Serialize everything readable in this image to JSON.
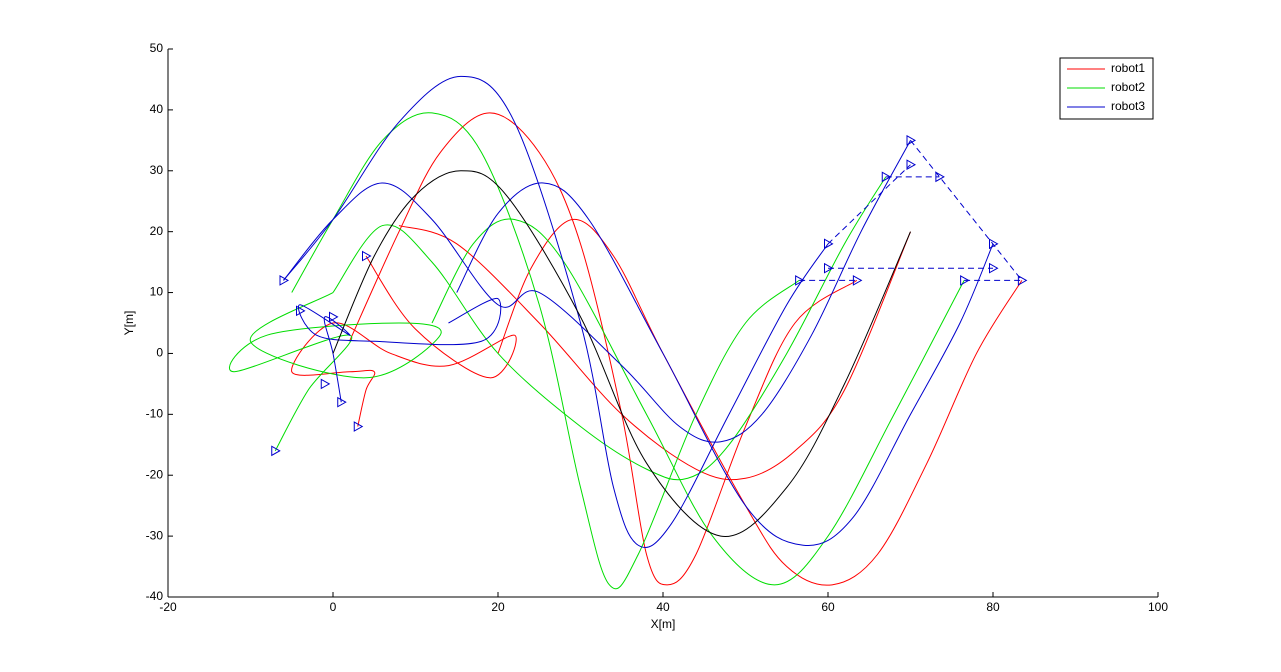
{
  "chart_data": {
    "type": "line",
    "xlabel": "X[m]",
    "ylabel": "Y[m]",
    "xlim": [
      -20,
      100
    ],
    "ylim": [
      -40,
      50
    ],
    "xticks": [
      -20,
      0,
      20,
      40,
      60,
      80,
      100
    ],
    "yticks": [
      -40,
      -30,
      -20,
      -10,
      0,
      10,
      20,
      30,
      40,
      50
    ],
    "legend": "upper right",
    "series": [
      {
        "name": "robot1",
        "color": "#ff0000",
        "x": [
          2,
          8,
          13,
          19,
          25,
          30,
          35,
          38,
          40.5,
          44,
          50,
          56,
          63.5
        ],
        "values": [
          2,
          20,
          33,
          39.5,
          33,
          18,
          -10,
          -33,
          -38,
          -33,
          -12,
          5,
          12
        ]
      },
      {
        "color": "#ff0000",
        "x": [
          20,
          24,
          29,
          34,
          40,
          50,
          55,
          60.5,
          66,
          72,
          78,
          83.5
        ],
        "values": [
          0,
          14,
          22,
          16,
          0,
          -25,
          -35,
          -38,
          -33,
          -18,
          0,
          12
        ]
      },
      {
        "color": "#ff0000",
        "x": [
          8,
          15,
          25,
          35,
          44,
          50,
          56,
          62,
          70
        ],
        "values": [
          21,
          18,
          5,
          -10,
          -19,
          -20.5,
          -16,
          -6,
          20
        ]
      },
      {
        "color": "#ff0000",
        "x": [
          3,
          4,
          5,
          2,
          -5,
          0,
          7,
          14,
          22,
          19,
          10,
          4
        ],
        "values": [
          -12,
          -6,
          -3,
          -3,
          -3,
          5,
          0,
          -2,
          3,
          -4,
          4,
          16
        ]
      },
      {
        "name": "robot2",
        "color": "#00dd00",
        "x": [
          -5,
          0,
          6,
          12,
          18,
          25,
          30,
          33.5,
          37,
          44,
          50,
          56.5
        ],
        "values": [
          10,
          22,
          35,
          39.5,
          33,
          8,
          -22,
          -38,
          -33,
          -10,
          5,
          12
        ]
      },
      {
        "color": "#00dd00",
        "x": [
          12,
          17,
          22,
          28,
          38,
          46,
          53.5,
          60,
          68,
          76.5
        ],
        "values": [
          5,
          18,
          22,
          15,
          -10,
          -30,
          -38,
          -30,
          -10,
          12
        ]
      },
      {
        "color": "#00dd00",
        "x": [
          0,
          6,
          12,
          20,
          30,
          38,
          43,
          48,
          55,
          62,
          67
        ],
        "values": [
          10,
          21,
          15,
          0,
          -12,
          -19,
          -20.5,
          -15,
          0,
          18,
          29
        ]
      },
      {
        "color": "#00dd00",
        "x": [
          -7,
          -3,
          2,
          -12,
          -8,
          8,
          13,
          4,
          -10,
          0
        ],
        "values": [
          -16,
          -6,
          3,
          -3,
          3,
          5,
          3,
          -4,
          2,
          10
        ]
      },
      {
        "name": "robot3",
        "color": "#0000cc",
        "x": [
          -6,
          0,
          8,
          15.5,
          22,
          30,
          34,
          37,
          41,
          48,
          55,
          60
        ],
        "values": [
          12,
          22,
          38,
          45.5,
          38,
          5,
          -22,
          -31.5,
          -28,
          -10,
          8,
          18
        ]
      },
      {
        "color": "#0000cc",
        "x": [
          15,
          20,
          25.5,
          31,
          40,
          50,
          57,
          63,
          70,
          76,
          80
        ],
        "values": [
          10,
          23,
          28,
          22,
          0,
          -25,
          -31.5,
          -27,
          -10,
          5,
          18
        ]
      },
      {
        "color": "#0000cc",
        "x": [
          -6,
          0,
          6,
          12,
          20,
          25,
          35,
          42,
          47,
          52,
          58,
          64,
          70
        ],
        "values": [
          12,
          22,
          28,
          22,
          8,
          10,
          -2,
          -12,
          -14.5,
          -10,
          3,
          20,
          35
        ]
      },
      {
        "color": "#0000cc",
        "x": [
          1,
          0,
          -1,
          2,
          -4,
          -2,
          5,
          18,
          20,
          14
        ],
        "values": [
          -8,
          0,
          6,
          3,
          8,
          3,
          2,
          2,
          9,
          5
        ]
      },
      {
        "color": "#000000",
        "x": [
          0,
          5,
          10,
          15.5,
          21,
          30,
          38,
          47,
          55,
          62,
          70
        ],
        "values": [
          0,
          16,
          26,
          30,
          26,
          6,
          -18,
          -30,
          -22,
          -5,
          20
        ]
      },
      {
        "color": "#0000cc",
        "dash": true,
        "x": [
          56.5,
          63.5,
          null,
          60,
          80,
          null,
          76.5,
          83.5,
          null,
          67,
          73.5,
          null,
          70,
          83.5,
          null,
          60,
          70
        ],
        "values": [
          12,
          12,
          null,
          14,
          14,
          null,
          12,
          12,
          null,
          29,
          29,
          null,
          35,
          12,
          null,
          18,
          31
        ]
      },
      {
        "color": "#0000cc",
        "line": "none",
        "marker": "triangle",
        "x": [
          56.5,
          63.5,
          60,
          60,
          67,
          70,
          70,
          73.5,
          76.5,
          80,
          80,
          83.5,
          3,
          4,
          -7,
          1,
          -1,
          -6,
          0,
          -4
        ],
        "values": [
          12,
          12,
          14,
          18,
          29,
          31,
          35,
          29,
          12,
          14,
          18,
          12,
          -12,
          16,
          -16,
          -8,
          -5,
          12,
          6,
          7
        ]
      }
    ]
  }
}
